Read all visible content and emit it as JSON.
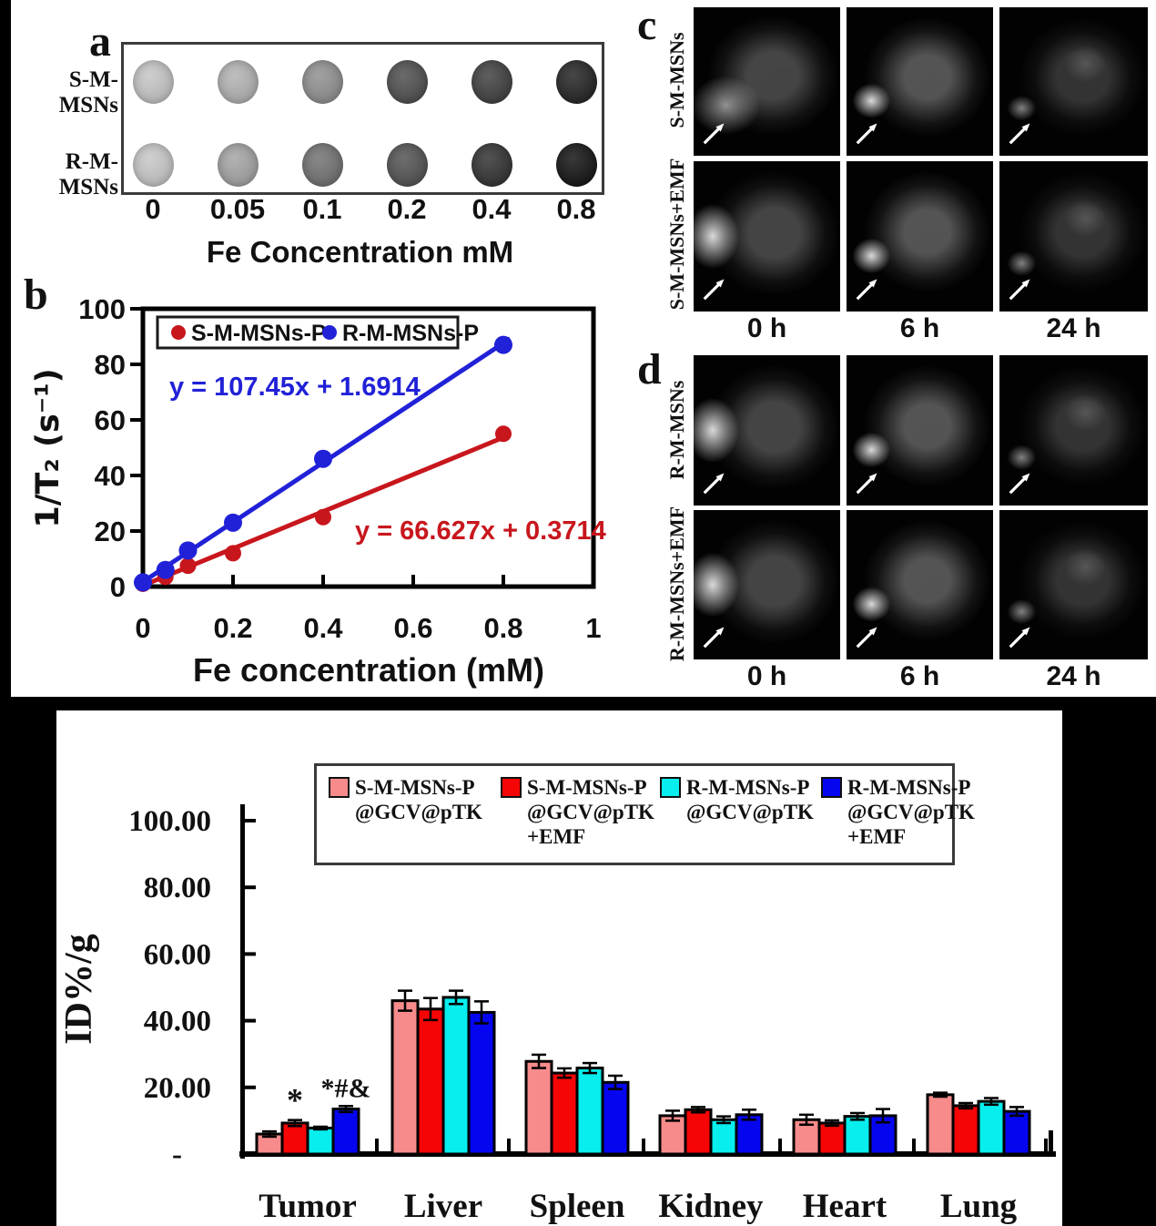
{
  "panel_a": {
    "label": "a",
    "rows": [
      {
        "label": "S-M-MSNs",
        "dot_colors": [
          "#c3c3c3",
          "#b0b0b0",
          "#8d8d8d",
          "#4a4a4a",
          "#3b3b3b",
          "#1f1f1f"
        ]
      },
      {
        "label": "R-M-MSNs",
        "dot_colors": [
          "#c5c5c5",
          "#a1a1a1",
          "#6e6e6e",
          "#4e4e4e",
          "#2d2d2d",
          "#0e0e0e"
        ]
      }
    ],
    "tick_labels": [
      "0",
      "0.05",
      "0.1",
      "0.2",
      "0.4",
      "0.8"
    ],
    "axis_title": "Fe Concentration mM"
  },
  "panel_b": {
    "label": "b"
  },
  "panel_c": {
    "label": "c",
    "row_labels": [
      "S-M-MSNs",
      "S-M-MSNs+EMF"
    ],
    "time_labels": [
      "0 h",
      "6 h",
      "24 h"
    ]
  },
  "panel_d": {
    "label": "d",
    "row_labels": [
      "R-M-MSNs",
      "R-M-MSNs+EMF"
    ],
    "time_labels": [
      "0 h",
      "6 h",
      "24 h"
    ]
  },
  "chart_data": [
    {
      "type": "scatter",
      "title": "",
      "xlabel": "Fe concentration (mM)",
      "ylabel": "1/T₂ (s⁻¹)",
      "xlim": [
        0,
        1
      ],
      "ylim": [
        0,
        100
      ],
      "xticks": [
        "0",
        "0.2",
        "0.4",
        "0.6",
        "0.8",
        "1"
      ],
      "yticks": [
        "0",
        "20",
        "40",
        "60",
        "80",
        "100"
      ],
      "x": [
        0,
        0.05,
        0.1,
        0.2,
        0.4,
        0.8
      ],
      "grid": false,
      "legend_position": "top-left",
      "series": [
        {
          "name": "S-M-MSNs-P",
          "color": "#c8161d",
          "values": [
            1,
            3.5,
            7.5,
            12,
            25,
            55
          ],
          "fit_label": "y = 66.627x + 0.3714",
          "slope": 66.627,
          "intercept": 0.3714
        },
        {
          "name": "R-M-MSNs-P",
          "color": "#2121d8",
          "values": [
            1.5,
            6,
            13,
            23,
            46,
            87
          ],
          "fit_label": "y = 107.45x + 1.6914",
          "slope": 107.45,
          "intercept": 1.6914
        }
      ]
    },
    {
      "type": "bar",
      "title": "",
      "xlabel": "",
      "ylabel": "ID%/g",
      "ylim": [
        0,
        100
      ],
      "ytick_labels": [
        "-",
        "20.00",
        "40.00",
        "60.00",
        "80.00",
        "100.00"
      ],
      "categories": [
        "Tumor",
        "Liver",
        "Spleen",
        "Kidney",
        "Heart",
        "Lung"
      ],
      "grid": false,
      "legend_position": "top",
      "series": [
        {
          "name": "S-M-MSNs-P@GCV@pTK",
          "legend_lines": [
            "S-M-MSNs-P",
            "@GCV@pTK"
          ],
          "color": "#f78b8b",
          "values": [
            6,
            46,
            27.8,
            11.5,
            10.3,
            17.8
          ],
          "errors": [
            0.8,
            3,
            2,
            1.5,
            1.5,
            0.6
          ]
        },
        {
          "name": "S-M-MSNs-P@GCV@pTK+EMF",
          "legend_lines": [
            "S-M-MSNs-P",
            "@GCV@pTK",
            "+EMF"
          ],
          "color": "#f50505",
          "values": [
            9.3,
            43.5,
            24.3,
            13.3,
            9.3,
            14.5
          ],
          "errors": [
            0.9,
            3.3,
            1.4,
            0.8,
            0.8,
            0.8
          ]
        },
        {
          "name": "R-M-MSNs-P@GCV@pTK",
          "legend_lines": [
            "R-M-MSNs-P",
            "@GCV@pTK"
          ],
          "color": "#08eded",
          "values": [
            7.8,
            47,
            25.8,
            10.3,
            11.3,
            15.8
          ],
          "errors": [
            0.4,
            2,
            1.5,
            1,
            1,
            1
          ]
        },
        {
          "name": "R-M-MSNs-P@GCV@pTK+EMF",
          "legend_lines": [
            "R-M-MSNs-P",
            "@GCV@pTK",
            "+EMF"
          ],
          "color": "#0505f0",
          "values": [
            13.5,
            42.5,
            21.5,
            11.8,
            11.5,
            12.8
          ],
          "errors": [
            0.9,
            3.3,
            2,
            1.5,
            2,
            1.3
          ]
        }
      ],
      "annotations": [
        {
          "text": "*",
          "category": "Tumor",
          "series_index": 1
        },
        {
          "text": "*#&",
          "category": "Tumor",
          "series_index": 3
        }
      ]
    }
  ]
}
